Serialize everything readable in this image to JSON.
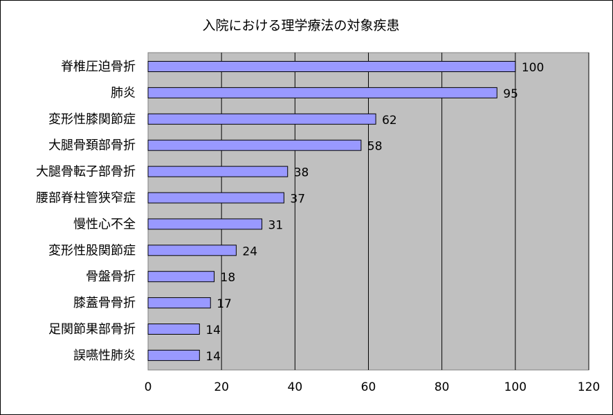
{
  "chart_data": {
    "type": "bar",
    "orientation": "horizontal",
    "title": "入院における理学療法の対象疾患",
    "categories": [
      "脊椎圧迫骨折",
      "肺炎",
      "変形性膝関節症",
      "大腿骨頚部骨折",
      "大腿骨転子部骨折",
      "腰部脊柱管狭窄症",
      "慢性心不全",
      "変形性股関節症",
      "骨盤骨折",
      "膝蓋骨骨折",
      "足関節果部骨折",
      "誤嚥性肺炎"
    ],
    "values": [
      100,
      95,
      62,
      58,
      38,
      37,
      31,
      24,
      18,
      17,
      14,
      14
    ],
    "xlim": [
      0,
      120
    ],
    "xticks": [
      0,
      20,
      40,
      60,
      80,
      100,
      120
    ],
    "xlabel": "",
    "ylabel": "",
    "grid": "vertical",
    "legend": "none",
    "colors": {
      "bar_fill": "#9999ff",
      "bar_stroke": "#000000",
      "plot_background": "#c0c0c0",
      "gridline": "#000000"
    }
  }
}
